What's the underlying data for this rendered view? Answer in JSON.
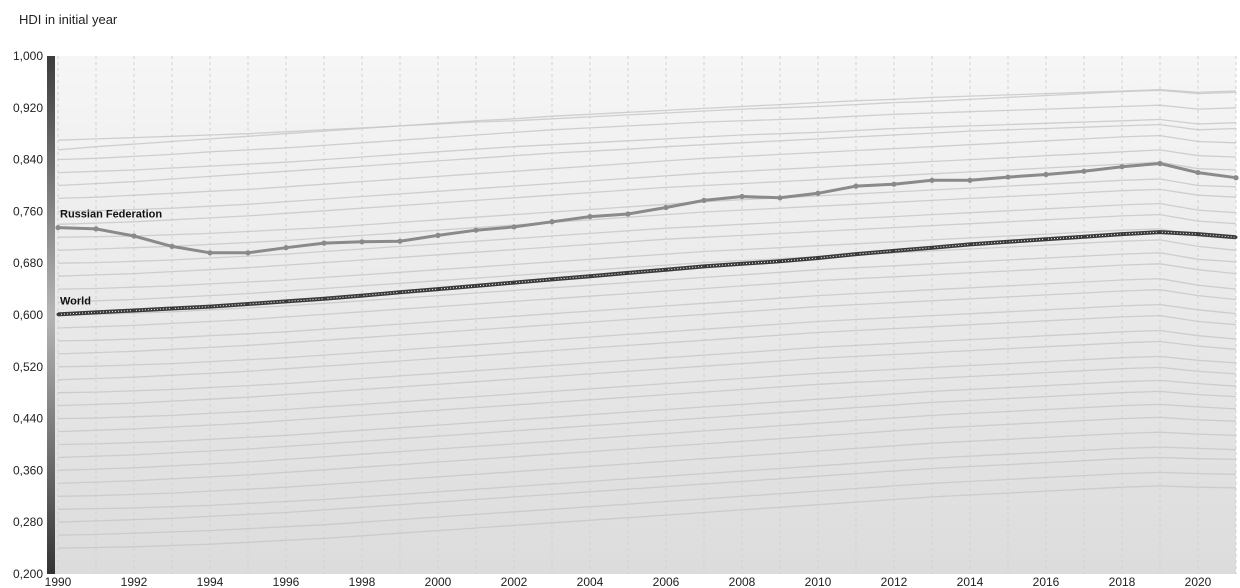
{
  "header": {
    "label": "HDI in initial year"
  },
  "chart_data": {
    "type": "line",
    "title": "",
    "xlabel": "",
    "ylabel": "",
    "xlim": [
      1990,
      2021
    ],
    "ylim": [
      0.2,
      1.0
    ],
    "grid": "vertical dashed",
    "x_ticks": [
      1990,
      1992,
      1994,
      1996,
      1998,
      2000,
      2002,
      2004,
      2006,
      2008,
      2010,
      2012,
      2014,
      2016,
      2018,
      2020
    ],
    "y_ticks": [
      0.2,
      0.28,
      0.36,
      0.44,
      0.52,
      0.6,
      0.68,
      0.76,
      0.84,
      0.92,
      1.0
    ],
    "y_tick_labels": [
      "0,200",
      "0,280",
      "0,360",
      "0,440",
      "0,520",
      "0,600",
      "0,680",
      "0,760",
      "0,840",
      "0,920",
      "1,000"
    ],
    "x": [
      1990,
      1991,
      1992,
      1993,
      1994,
      1995,
      1996,
      1997,
      1998,
      1999,
      2000,
      2001,
      2002,
      2003,
      2004,
      2005,
      2006,
      2007,
      2008,
      2009,
      2010,
      2011,
      2012,
      2013,
      2014,
      2015,
      2016,
      2017,
      2018,
      2019,
      2020,
      2021
    ],
    "series": [
      {
        "name": "Russian Federation",
        "color": "#8a8a8a",
        "values": [
          0.735,
          0.733,
          0.722,
          0.706,
          0.696,
          0.696,
          0.704,
          0.711,
          0.713,
          0.714,
          0.723,
          0.731,
          0.736,
          0.744,
          0.752,
          0.756,
          0.766,
          0.777,
          0.783,
          0.781,
          0.788,
          0.799,
          0.802,
          0.808,
          0.808,
          0.813,
          0.817,
          0.822,
          0.829,
          0.834,
          0.82,
          0.812
        ]
      },
      {
        "name": "World",
        "color": "#3a3a3a",
        "values": [
          0.601,
          0.604,
          0.607,
          0.61,
          0.613,
          0.617,
          0.621,
          0.625,
          0.63,
          0.635,
          0.64,
          0.645,
          0.65,
          0.655,
          0.66,
          0.665,
          0.67,
          0.675,
          0.679,
          0.683,
          0.688,
          0.694,
          0.699,
          0.704,
          0.709,
          0.713,
          0.717,
          0.721,
          0.725,
          0.728,
          0.725,
          0.72
        ]
      }
    ],
    "background_series_color": "#c8c8c8",
    "background_series": [
      [
        0.87,
        0.872,
        0.874,
        0.876,
        0.878,
        0.88,
        0.883,
        0.886,
        0.889,
        0.892,
        0.895,
        0.898,
        0.9,
        0.903,
        0.906,
        0.909,
        0.912,
        0.915,
        0.918,
        0.92,
        0.922,
        0.925,
        0.928,
        0.93,
        0.933,
        0.936,
        0.939,
        0.942,
        0.945,
        0.947,
        0.942,
        0.944
      ],
      [
        0.855,
        0.86,
        0.864,
        0.868,
        0.872,
        0.876,
        0.88,
        0.884,
        0.888,
        0.892,
        0.896,
        0.9,
        0.903,
        0.907,
        0.91,
        0.913,
        0.916,
        0.919,
        0.922,
        0.925,
        0.928,
        0.931,
        0.933,
        0.936,
        0.938,
        0.94,
        0.942,
        0.944,
        0.946,
        0.948,
        0.944,
        0.946
      ],
      [
        0.84,
        0.842,
        0.845,
        0.848,
        0.852,
        0.855,
        0.858,
        0.862,
        0.866,
        0.87,
        0.874,
        0.878,
        0.882,
        0.886,
        0.889,
        0.892,
        0.895,
        0.898,
        0.9,
        0.902,
        0.904,
        0.907,
        0.91,
        0.912,
        0.914,
        0.916,
        0.918,
        0.92,
        0.922,
        0.924,
        0.918,
        0.92
      ],
      [
        0.82,
        0.822,
        0.824,
        0.827,
        0.83,
        0.833,
        0.836,
        0.84,
        0.844,
        0.848,
        0.852,
        0.856,
        0.86,
        0.863,
        0.866,
        0.869,
        0.872,
        0.875,
        0.878,
        0.88,
        0.882,
        0.885,
        0.888,
        0.89,
        0.892,
        0.894,
        0.896,
        0.898,
        0.9,
        0.902,
        0.895,
        0.897
      ],
      [
        0.8,
        0.803,
        0.806,
        0.81,
        0.814,
        0.818,
        0.822,
        0.826,
        0.83,
        0.834,
        0.838,
        0.842,
        0.846,
        0.85,
        0.853,
        0.856,
        0.86,
        0.863,
        0.866,
        0.869,
        0.872,
        0.875,
        0.878,
        0.881,
        0.884,
        0.886,
        0.888,
        0.89,
        0.892,
        0.894,
        0.886,
        0.888
      ],
      [
        0.78,
        0.782,
        0.785,
        0.788,
        0.791,
        0.794,
        0.798,
        0.802,
        0.806,
        0.81,
        0.814,
        0.818,
        0.822,
        0.826,
        0.83,
        0.834,
        0.838,
        0.842,
        0.845,
        0.848,
        0.851,
        0.854,
        0.857,
        0.86,
        0.863,
        0.866,
        0.869,
        0.872,
        0.875,
        0.877,
        0.868,
        0.866
      ],
      [
        0.76,
        0.761,
        0.763,
        0.765,
        0.768,
        0.771,
        0.775,
        0.779,
        0.783,
        0.787,
        0.791,
        0.795,
        0.799,
        0.803,
        0.807,
        0.811,
        0.815,
        0.819,
        0.822,
        0.825,
        0.828,
        0.831,
        0.834,
        0.837,
        0.84,
        0.843,
        0.846,
        0.849,
        0.852,
        0.855,
        0.846,
        0.844
      ],
      [
        0.74,
        0.742,
        0.744,
        0.747,
        0.75,
        0.753,
        0.757,
        0.761,
        0.765,
        0.769,
        0.773,
        0.777,
        0.781,
        0.785,
        0.789,
        0.793,
        0.797,
        0.8,
        0.803,
        0.806,
        0.809,
        0.812,
        0.815,
        0.818,
        0.821,
        0.824,
        0.827,
        0.83,
        0.833,
        0.836,
        0.826,
        0.824
      ],
      [
        0.72,
        0.721,
        0.722,
        0.724,
        0.726,
        0.729,
        0.732,
        0.735,
        0.739,
        0.743,
        0.747,
        0.751,
        0.755,
        0.759,
        0.763,
        0.767,
        0.771,
        0.775,
        0.778,
        0.781,
        0.784,
        0.787,
        0.79,
        0.793,
        0.796,
        0.799,
        0.802,
        0.805,
        0.808,
        0.81,
        0.8,
        0.798
      ],
      [
        0.7,
        0.702,
        0.704,
        0.706,
        0.709,
        0.712,
        0.715,
        0.719,
        0.723,
        0.727,
        0.731,
        0.735,
        0.739,
        0.743,
        0.747,
        0.751,
        0.755,
        0.759,
        0.762,
        0.765,
        0.768,
        0.771,
        0.774,
        0.777,
        0.78,
        0.783,
        0.786,
        0.789,
        0.792,
        0.794,
        0.785,
        0.782
      ],
      [
        0.68,
        0.681,
        0.683,
        0.685,
        0.688,
        0.691,
        0.694,
        0.698,
        0.702,
        0.706,
        0.71,
        0.714,
        0.718,
        0.722,
        0.726,
        0.73,
        0.734,
        0.737,
        0.74,
        0.743,
        0.746,
        0.749,
        0.752,
        0.755,
        0.758,
        0.761,
        0.764,
        0.767,
        0.77,
        0.772,
        0.762,
        0.758
      ],
      [
        0.66,
        0.662,
        0.664,
        0.667,
        0.67,
        0.673,
        0.677,
        0.681,
        0.685,
        0.689,
        0.693,
        0.697,
        0.701,
        0.705,
        0.709,
        0.713,
        0.717,
        0.72,
        0.723,
        0.726,
        0.729,
        0.732,
        0.735,
        0.738,
        0.741,
        0.744,
        0.747,
        0.75,
        0.753,
        0.755,
        0.745,
        0.741
      ],
      [
        0.64,
        0.641,
        0.643,
        0.645,
        0.648,
        0.651,
        0.654,
        0.658,
        0.662,
        0.666,
        0.67,
        0.674,
        0.678,
        0.682,
        0.686,
        0.69,
        0.694,
        0.698,
        0.701,
        0.704,
        0.707,
        0.71,
        0.713,
        0.716,
        0.719,
        0.722,
        0.725,
        0.728,
        0.731,
        0.733,
        0.722,
        0.718
      ],
      [
        0.62,
        0.622,
        0.624,
        0.627,
        0.63,
        0.633,
        0.637,
        0.641,
        0.645,
        0.649,
        0.653,
        0.657,
        0.661,
        0.665,
        0.669,
        0.673,
        0.677,
        0.681,
        0.684,
        0.687,
        0.69,
        0.693,
        0.696,
        0.699,
        0.702,
        0.705,
        0.708,
        0.711,
        0.714,
        0.716,
        0.706,
        0.7
      ],
      [
        0.6,
        0.601,
        0.603,
        0.605,
        0.608,
        0.611,
        0.614,
        0.618,
        0.622,
        0.626,
        0.63,
        0.634,
        0.638,
        0.642,
        0.646,
        0.65,
        0.654,
        0.658,
        0.662,
        0.666,
        0.67,
        0.673,
        0.676,
        0.679,
        0.682,
        0.685,
        0.688,
        0.691,
        0.694,
        0.696,
        0.686,
        0.682
      ],
      [
        0.58,
        0.582,
        0.584,
        0.587,
        0.59,
        0.593,
        0.597,
        0.601,
        0.605,
        0.609,
        0.613,
        0.617,
        0.621,
        0.625,
        0.629,
        0.633,
        0.637,
        0.641,
        0.645,
        0.649,
        0.653,
        0.656,
        0.659,
        0.662,
        0.665,
        0.668,
        0.671,
        0.674,
        0.677,
        0.679,
        0.67,
        0.664
      ],
      [
        0.56,
        0.561,
        0.563,
        0.565,
        0.568,
        0.571,
        0.574,
        0.578,
        0.582,
        0.586,
        0.59,
        0.594,
        0.598,
        0.602,
        0.606,
        0.61,
        0.614,
        0.618,
        0.622,
        0.626,
        0.63,
        0.633,
        0.636,
        0.639,
        0.642,
        0.645,
        0.648,
        0.651,
        0.654,
        0.656,
        0.646,
        0.64
      ],
      [
        0.54,
        0.542,
        0.544,
        0.547,
        0.55,
        0.553,
        0.557,
        0.561,
        0.565,
        0.569,
        0.573,
        0.577,
        0.581,
        0.585,
        0.589,
        0.593,
        0.597,
        0.601,
        0.605,
        0.609,
        0.613,
        0.616,
        0.619,
        0.622,
        0.625,
        0.628,
        0.631,
        0.634,
        0.637,
        0.639,
        0.63,
        0.624
      ],
      [
        0.52,
        0.521,
        0.523,
        0.525,
        0.528,
        0.531,
        0.534,
        0.538,
        0.542,
        0.546,
        0.55,
        0.554,
        0.558,
        0.562,
        0.566,
        0.57,
        0.574,
        0.578,
        0.582,
        0.586,
        0.59,
        0.593,
        0.596,
        0.599,
        0.602,
        0.605,
        0.608,
        0.611,
        0.614,
        0.616,
        0.608,
        0.602
      ],
      [
        0.5,
        0.502,
        0.504,
        0.507,
        0.51,
        0.513,
        0.517,
        0.521,
        0.525,
        0.529,
        0.533,
        0.537,
        0.541,
        0.545,
        0.549,
        0.553,
        0.557,
        0.561,
        0.565,
        0.569,
        0.573,
        0.576,
        0.579,
        0.582,
        0.585,
        0.588,
        0.591,
        0.594,
        0.597,
        0.599,
        0.59,
        0.585
      ],
      [
        0.48,
        0.481,
        0.483,
        0.485,
        0.488,
        0.491,
        0.494,
        0.498,
        0.502,
        0.506,
        0.51,
        0.514,
        0.518,
        0.522,
        0.526,
        0.53,
        0.534,
        0.538,
        0.542,
        0.546,
        0.55,
        0.553,
        0.556,
        0.559,
        0.562,
        0.565,
        0.568,
        0.571,
        0.574,
        0.576,
        0.568,
        0.563
      ],
      [
        0.46,
        0.462,
        0.464,
        0.467,
        0.47,
        0.473,
        0.477,
        0.481,
        0.485,
        0.489,
        0.493,
        0.497,
        0.501,
        0.505,
        0.509,
        0.513,
        0.517,
        0.521,
        0.525,
        0.529,
        0.533,
        0.536,
        0.539,
        0.542,
        0.545,
        0.548,
        0.551,
        0.554,
        0.557,
        0.559,
        0.552,
        0.547
      ],
      [
        0.44,
        0.441,
        0.443,
        0.445,
        0.448,
        0.451,
        0.454,
        0.458,
        0.462,
        0.466,
        0.47,
        0.474,
        0.478,
        0.482,
        0.486,
        0.49,
        0.494,
        0.498,
        0.502,
        0.506,
        0.51,
        0.513,
        0.516,
        0.519,
        0.522,
        0.525,
        0.528,
        0.531,
        0.534,
        0.536,
        0.53,
        0.526
      ],
      [
        0.42,
        0.422,
        0.424,
        0.427,
        0.43,
        0.433,
        0.437,
        0.441,
        0.445,
        0.449,
        0.453,
        0.457,
        0.461,
        0.465,
        0.469,
        0.473,
        0.477,
        0.481,
        0.485,
        0.489,
        0.493,
        0.496,
        0.499,
        0.502,
        0.505,
        0.508,
        0.511,
        0.514,
        0.517,
        0.519,
        0.513,
        0.509
      ],
      [
        0.4,
        0.401,
        0.403,
        0.405,
        0.408,
        0.411,
        0.414,
        0.418,
        0.422,
        0.426,
        0.43,
        0.434,
        0.438,
        0.442,
        0.446,
        0.45,
        0.454,
        0.458,
        0.462,
        0.466,
        0.47,
        0.474,
        0.478,
        0.482,
        0.485,
        0.488,
        0.491,
        0.494,
        0.497,
        0.499,
        0.494,
        0.49
      ],
      [
        0.38,
        0.382,
        0.384,
        0.387,
        0.39,
        0.393,
        0.397,
        0.401,
        0.405,
        0.409,
        0.413,
        0.417,
        0.421,
        0.425,
        0.429,
        0.433,
        0.437,
        0.441,
        0.445,
        0.449,
        0.453,
        0.457,
        0.461,
        0.465,
        0.468,
        0.471,
        0.474,
        0.477,
        0.48,
        0.482,
        0.477,
        0.474
      ],
      [
        0.36,
        0.362,
        0.364,
        0.367,
        0.37,
        0.373,
        0.377,
        0.381,
        0.385,
        0.389,
        0.393,
        0.397,
        0.401,
        0.405,
        0.409,
        0.413,
        0.417,
        0.421,
        0.425,
        0.429,
        0.433,
        0.437,
        0.441,
        0.445,
        0.448,
        0.451,
        0.454,
        0.457,
        0.46,
        0.462,
        0.458,
        0.455
      ],
      [
        0.34,
        0.342,
        0.344,
        0.347,
        0.35,
        0.353,
        0.357,
        0.361,
        0.365,
        0.369,
        0.373,
        0.377,
        0.381,
        0.385,
        0.389,
        0.393,
        0.397,
        0.401,
        0.405,
        0.409,
        0.413,
        0.417,
        0.421,
        0.425,
        0.428,
        0.431,
        0.434,
        0.437,
        0.44,
        0.442,
        0.438,
        0.436
      ],
      [
        0.32,
        0.321,
        0.323,
        0.325,
        0.328,
        0.331,
        0.334,
        0.338,
        0.342,
        0.346,
        0.35,
        0.354,
        0.358,
        0.362,
        0.366,
        0.37,
        0.374,
        0.378,
        0.382,
        0.386,
        0.39,
        0.394,
        0.398,
        0.402,
        0.405,
        0.408,
        0.411,
        0.414,
        0.417,
        0.419,
        0.416,
        0.414
      ],
      [
        0.3,
        0.301,
        0.302,
        0.304,
        0.306,
        0.309,
        0.312,
        0.315,
        0.319,
        0.323,
        0.327,
        0.331,
        0.335,
        0.339,
        0.343,
        0.347,
        0.351,
        0.355,
        0.359,
        0.363,
        0.367,
        0.371,
        0.375,
        0.379,
        0.382,
        0.385,
        0.388,
        0.391,
        0.394,
        0.396,
        0.394,
        0.392
      ],
      [
        0.28,
        0.282,
        0.284,
        0.286,
        0.289,
        0.292,
        0.295,
        0.299,
        0.303,
        0.307,
        0.311,
        0.315,
        0.319,
        0.323,
        0.327,
        0.331,
        0.335,
        0.339,
        0.343,
        0.347,
        0.351,
        0.355,
        0.359,
        0.363,
        0.366,
        0.369,
        0.372,
        0.375,
        0.378,
        0.38,
        0.378,
        0.377
      ],
      [
        0.26,
        0.261,
        0.263,
        0.265,
        0.267,
        0.27,
        0.273,
        0.276,
        0.28,
        0.284,
        0.288,
        0.292,
        0.296,
        0.3,
        0.304,
        0.308,
        0.312,
        0.316,
        0.32,
        0.324,
        0.328,
        0.332,
        0.336,
        0.34,
        0.343,
        0.346,
        0.349,
        0.352,
        0.355,
        0.357,
        0.355,
        0.354
      ],
      [
        0.24,
        0.241,
        0.242,
        0.244,
        0.246,
        0.249,
        0.252,
        0.255,
        0.259,
        0.263,
        0.267,
        0.271,
        0.275,
        0.279,
        0.283,
        0.287,
        0.291,
        0.295,
        0.299,
        0.303,
        0.307,
        0.311,
        0.315,
        0.319,
        0.322,
        0.325,
        0.328,
        0.331,
        0.334,
        0.336,
        0.334,
        0.333
      ]
    ]
  }
}
